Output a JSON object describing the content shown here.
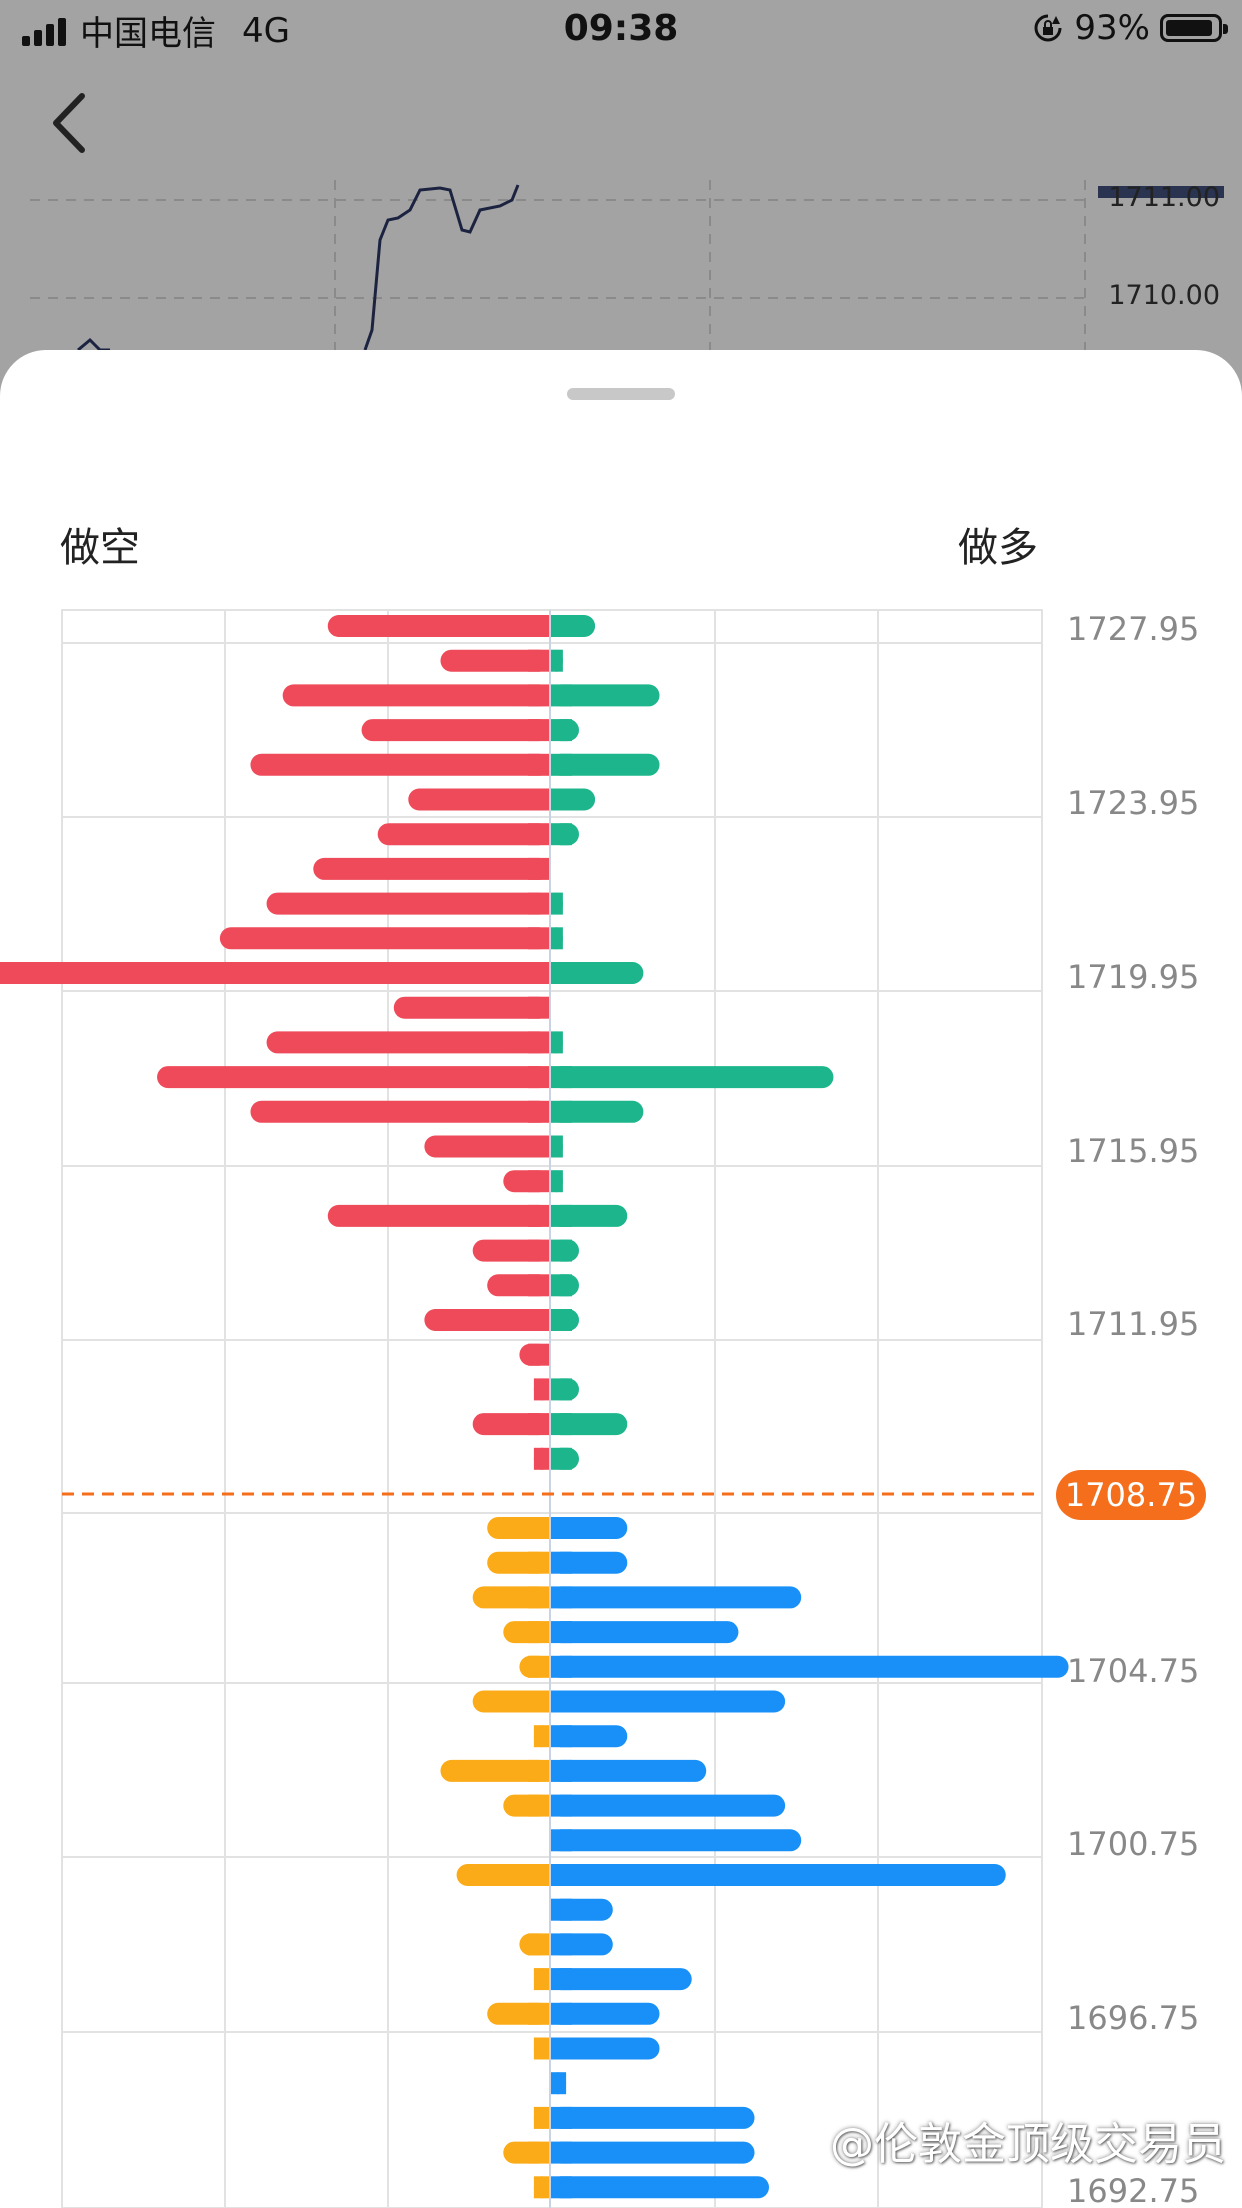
{
  "status_bar": {
    "carrier": "中国电信",
    "network": "4G",
    "time": "09:38",
    "battery": "93%"
  },
  "background_chart": {
    "price_labels": [
      "1711.00",
      "1710.00"
    ]
  },
  "sheet": {
    "left_label": "做空",
    "right_label": "做多"
  },
  "chart_data": {
    "type": "bar",
    "orientation": "horizontal-diverging",
    "current_price": "1708.75",
    "price_labels": [
      "1727.95",
      "1723.95",
      "1719.95",
      "1715.95",
      "1711.95",
      "1704.75",
      "1700.75",
      "1696.75",
      "1692.75"
    ],
    "colors": {
      "short_above": "#ee4a59",
      "long_above": "#1db58b",
      "short_below": "#fbab17",
      "long_below": "#1890f7",
      "current": "#f46e1c"
    },
    "x_range": [
      -300,
      350
    ],
    "levels_above": [
      {
        "short": 138,
        "long": 28
      },
      {
        "short": 68,
        "long": 8
      },
      {
        "short": 166,
        "long": 68
      },
      {
        "short": 117,
        "long": 18
      },
      {
        "short": 186,
        "long": 68
      },
      {
        "short": 88,
        "long": 28
      },
      {
        "short": 107,
        "long": 18
      },
      {
        "short": 147,
        "long": 0
      },
      {
        "short": 176,
        "long": 8
      },
      {
        "short": 205,
        "long": 8
      },
      {
        "short": 420,
        "long": 58
      },
      {
        "short": 97,
        "long": 0
      },
      {
        "short": 176,
        "long": 8
      },
      {
        "short": 244,
        "long": 176
      },
      {
        "short": 186,
        "long": 58
      },
      {
        "short": 78,
        "long": 8
      },
      {
        "short": 29,
        "long": 8
      },
      {
        "short": 138,
        "long": 48
      },
      {
        "short": 48,
        "long": 18
      },
      {
        "short": 39,
        "long": 18
      },
      {
        "short": 78,
        "long": 18
      },
      {
        "short": 19,
        "long": 0
      },
      {
        "short": 10,
        "long": 18
      },
      {
        "short": 48,
        "long": 48
      },
      {
        "short": 10,
        "long": 18
      }
    ],
    "levels_below": [
      {
        "short": 39,
        "long": 48
      },
      {
        "short": 39,
        "long": 48
      },
      {
        "short": 48,
        "long": 156
      },
      {
        "short": 29,
        "long": 117
      },
      {
        "short": 19,
        "long": 322
      },
      {
        "short": 48,
        "long": 146
      },
      {
        "short": 10,
        "long": 48
      },
      {
        "short": 68,
        "long": 97
      },
      {
        "short": 29,
        "long": 146
      },
      {
        "short": 0,
        "long": 156
      },
      {
        "short": 58,
        "long": 283
      },
      {
        "short": 0,
        "long": 39
      },
      {
        "short": 19,
        "long": 39
      },
      {
        "short": 10,
        "long": 88
      },
      {
        "short": 39,
        "long": 68
      },
      {
        "short": 10,
        "long": 68
      },
      {
        "short": 0,
        "long": 10
      },
      {
        "short": 10,
        "long": 127
      },
      {
        "short": 29,
        "long": 127
      },
      {
        "short": 10,
        "long": 136
      }
    ]
  },
  "watermark": "@伦敦金顶级交易员"
}
